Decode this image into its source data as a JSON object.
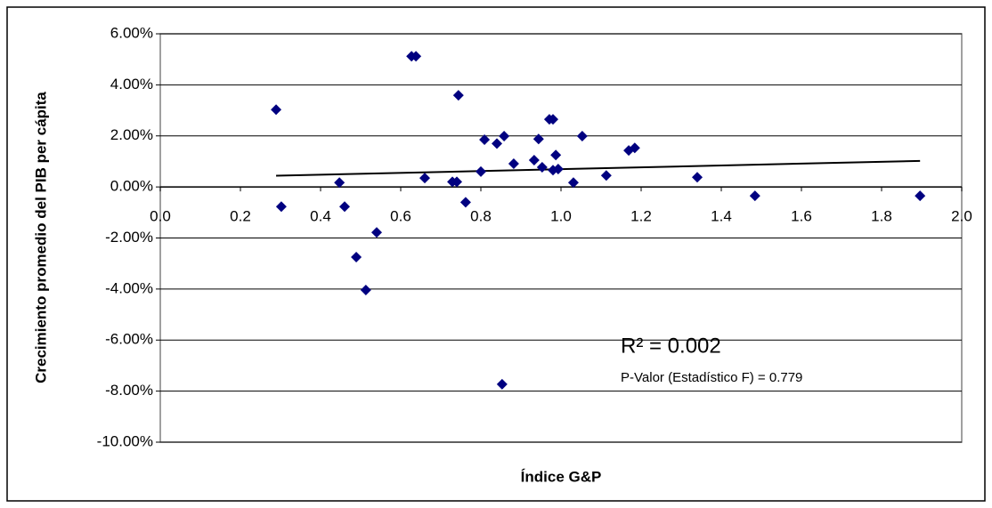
{
  "chart_data": {
    "type": "scatter",
    "x_label": "Índice G&P",
    "y_label": "Crecimiento promedio del PIB per cápita",
    "annotations": [
      "R² = 0.002",
      "P-Valor (Estadístico F) = 0.779"
    ],
    "color": "#000080",
    "grid": true,
    "trendline": true,
    "x": [
      0.289,
      0.302,
      0.447,
      0.46,
      0.489,
      0.513,
      0.54,
      0.627,
      0.638,
      0.66,
      0.729,
      0.74,
      0.744,
      0.762,
      0.8,
      0.809,
      0.84,
      0.858,
      0.853,
      0.882,
      0.933,
      0.944,
      0.953,
      0.971,
      0.98,
      0.98,
      0.987,
      0.993,
      1.031,
      1.053,
      1.113,
      1.169,
      1.184,
      1.34,
      1.484,
      1.896
    ],
    "values": [
      3.03,
      -0.77,
      0.17,
      -0.77,
      -2.75,
      -4.04,
      -1.78,
      5.12,
      5.12,
      0.35,
      0.2,
      0.2,
      3.59,
      -0.6,
      0.6,
      1.85,
      1.7,
      1.99,
      -7.73,
      0.91,
      1.05,
      1.88,
      0.77,
      2.65,
      2.65,
      0.66,
      1.25,
      0.7,
      0.17,
      1.99,
      0.45,
      1.43,
      1.53,
      0.38,
      -0.35,
      -0.35
    ],
    "xlim": [
      0,
      2
    ],
    "xticks": [
      {
        "value": 0,
        "label": "0.0"
      },
      0.2,
      0.4,
      0.6,
      0.8,
      {
        "value": 1,
        "label": "1.0"
      },
      1.2,
      1.4,
      1.6,
      1.8,
      {
        "value": 2,
        "label": "2.0"
      }
    ],
    "ylim": [
      -10,
      6
    ],
    "yticks": [
      {
        "value": -10,
        "label": "-10.00%"
      },
      {
        "value": -8,
        "label": "-8.00%"
      },
      {
        "value": -6,
        "label": "-6.00%"
      },
      {
        "value": -4,
        "label": "-4.00%"
      },
      {
        "value": -2,
        "label": "-2.00%"
      },
      {
        "value": 0,
        "label": "0.00%"
      },
      {
        "value": 2,
        "label": "2.00%"
      },
      {
        "value": 4,
        "label": "4.00%"
      },
      {
        "value": 6,
        "label": "6.00%"
      }
    ]
  }
}
